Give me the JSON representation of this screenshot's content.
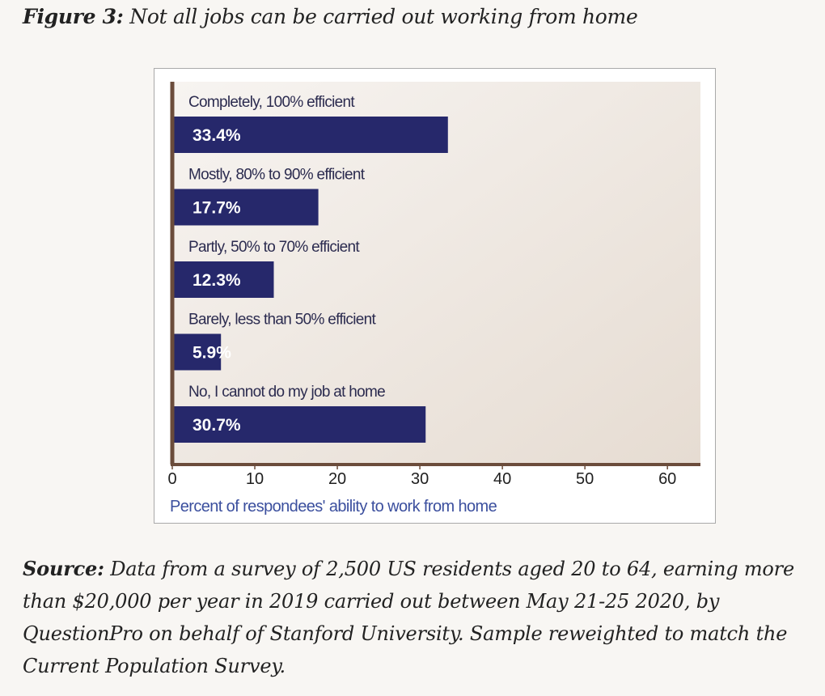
{
  "figure_caption": {
    "label": "Figure 3:",
    "text": "Not all jobs can be carried out working from home"
  },
  "source": {
    "label": "Source:",
    "text": "Data from a survey of 2,500 US residents aged 20 to 64, earning more than $20,000 per year in 2019 carried out between May 21-25 2020, by QuestionPro on behalf of Stanford University. Sample reweighted to match the Current Population Survey."
  },
  "colors": {
    "bar": "#26286b",
    "axis": "#6b4c3b",
    "plot_bg_light": "#f7f4f1",
    "plot_bg_dark": "#e6dcd2",
    "category_text": "#2b2b4f",
    "xlabel_text": "#3b4f9e",
    "value_text": "#ffffff"
  },
  "chart_data": {
    "type": "bar",
    "orientation": "horizontal",
    "categories": [
      "Completely, 100% efficient",
      "Mostly, 80% to 90% efficient",
      "Partly, 50% to 70% efficient",
      "Barely, less than 50% efficient",
      "No, I cannot do my job at home"
    ],
    "values": [
      33.4,
      17.7,
      12.3,
      5.9,
      30.7
    ],
    "value_labels": [
      "33.4%",
      "17.7%",
      "12.3%",
      "5.9%",
      "30.7%"
    ],
    "xlabel": "Percent of respondees' ability to work from home",
    "xticks": [
      0,
      10,
      20,
      30,
      40,
      50,
      60
    ],
    "xlim": [
      0,
      64
    ],
    "grid": false,
    "legend": "none",
    "title": ""
  }
}
